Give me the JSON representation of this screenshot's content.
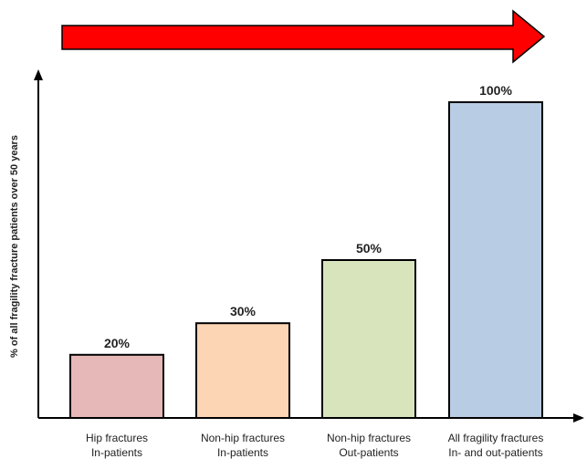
{
  "chart_data": {
    "type": "bar",
    "categories": [
      [
        "Hip fractures",
        "In-patients"
      ],
      [
        "Non-hip fractures",
        "In-patients"
      ],
      [
        "Non-hip fractures",
        "Out-patients"
      ],
      [
        "All fragility fractures",
        "In- and out-patients"
      ]
    ],
    "values": [
      20,
      30,
      50,
      100
    ],
    "value_labels": [
      "20%",
      "30%",
      "50%",
      "100%"
    ],
    "ylabel": "% of all fragility fracture patients over 50 years",
    "ylim": [
      0,
      100
    ],
    "grid": false,
    "bar_colors": [
      "#e6b8b7",
      "#fcd5b4",
      "#d8e4bc",
      "#b8cce4"
    ],
    "bar_edge_color": "#000000",
    "arrow_color": "#ff0000"
  }
}
